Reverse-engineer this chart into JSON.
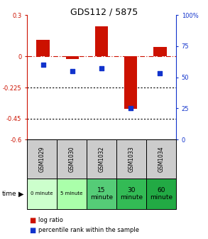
{
  "title": "GDS112 / 5875",
  "samples": [
    "GSM1029",
    "GSM1030",
    "GSM1032",
    "GSM1033",
    "GSM1034"
  ],
  "time_labels": [
    "0 minute",
    "5 minute",
    "15\nminute",
    "30\nminute",
    "60\nminute"
  ],
  "time_colors": [
    "#ccffcc",
    "#aaffaa",
    "#55cc77",
    "#33bb55",
    "#22aa44"
  ],
  "log_ratios": [
    0.12,
    -0.02,
    0.22,
    -0.38,
    0.07
  ],
  "percentile_ranks": [
    60,
    55,
    57,
    25,
    53
  ],
  "bar_color": "#cc1100",
  "dot_color": "#1133cc",
  "ylim_left": [
    -0.6,
    0.3
  ],
  "ylim_right": [
    0,
    100
  ],
  "yticks_left": [
    0.3,
    0,
    -0.225,
    -0.45,
    -0.6
  ],
  "ytick_labels_left": [
    "0.3",
    "0",
    "-0.225",
    "-0.45",
    "-0.6"
  ],
  "yticks_right": [
    100,
    75,
    50,
    25,
    0
  ],
  "hlines": [
    0,
    -0.225,
    -0.45
  ],
  "hline_styles": [
    "dashdot",
    "dotted",
    "dotted"
  ],
  "hline_colors": [
    "#cc1100",
    "#000000",
    "#000000"
  ],
  "legend_labels": [
    "log ratio",
    "percentile rank within the sample"
  ],
  "sample_bg_color": "#cccccc",
  "time_small_fontsize": 5.0,
  "time_large_fontsize": 6.5
}
